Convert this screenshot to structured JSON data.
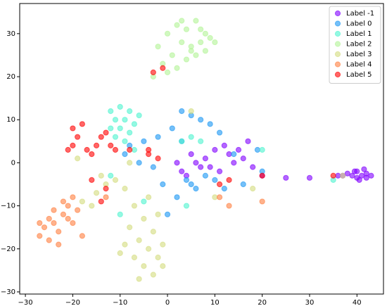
{
  "chart_data": {
    "type": "scatter",
    "xlim": [
      -31.2,
      45.6
    ],
    "ylim": [
      -30.5,
      37
    ],
    "xticks": [
      {
        "value": -30,
        "label": "−30"
      },
      {
        "value": -20,
        "label": "−20"
      },
      {
        "value": -10,
        "label": "−10"
      },
      0,
      10,
      20,
      30,
      40
    ],
    "yticks": [
      {
        "value": -30,
        "label": "−30"
      },
      {
        "value": -20,
        "label": "−20"
      },
      {
        "value": -10,
        "label": "−10"
      },
      0,
      10,
      20,
      30
    ],
    "legend": "upper right",
    "grid": false,
    "series": [
      {
        "name": "Label -1",
        "color": "#8000ff",
        "x": [
          40,
          41,
          42,
          39,
          40.5,
          41.5,
          38,
          43,
          39.5,
          40,
          42,
          37,
          36,
          2,
          5,
          8,
          10,
          12,
          14,
          16,
          18,
          11,
          7,
          4,
          13,
          15,
          9,
          6,
          17,
          3,
          20,
          25,
          30
        ],
        "y": [
          -2,
          -3,
          -2.5,
          -3,
          -4,
          -1.5,
          -2.5,
          -3,
          -2,
          -3.5,
          -3.5,
          -3,
          -3,
          0,
          2,
          1,
          3,
          4,
          0,
          1,
          -1,
          -2,
          -1,
          -3,
          2,
          3,
          -1,
          0,
          5,
          -2,
          -3,
          -3.5,
          -3.5
        ]
      },
      {
        "name": "Label 0",
        "color": "#1996f3",
        "x": [
          3,
          5,
          7,
          9,
          1,
          -2,
          -5,
          -8,
          11,
          14,
          19,
          20,
          4,
          6,
          8,
          -1,
          2,
          12,
          -3,
          -6,
          0,
          5,
          10,
          16,
          -9,
          3
        ],
        "y": [
          12,
          11,
          10,
          9,
          8,
          6,
          5,
          4,
          7,
          2,
          3,
          -2,
          -4,
          -6,
          -3,
          -5,
          -8,
          -6,
          -1,
          0,
          -12,
          -5,
          -4,
          -5,
          2,
          5
        ]
      },
      {
        "name": "Label 1",
        "color": "#4df3ce",
        "x": [
          -12,
          -10,
          -8,
          -11,
          -9,
          -7,
          -12,
          -10,
          -8,
          -6,
          -11,
          -9,
          5,
          7,
          4,
          -12,
          -5,
          20,
          35,
          -10,
          -7,
          3
        ],
        "y": [
          12,
          13,
          12,
          10,
          10,
          9,
          8,
          8,
          7,
          11,
          6,
          5,
          6,
          5,
          -10,
          -3,
          -9,
          3,
          -4,
          -12,
          3,
          5
        ]
      },
      {
        "name": "Label 2",
        "color": "#b2f396",
        "x": [
          0,
          2,
          4,
          6,
          8,
          3,
          5,
          7,
          9,
          1,
          4,
          6,
          8,
          -1,
          2,
          -3,
          0,
          5,
          10,
          3,
          7,
          -2
        ],
        "y": [
          30,
          32,
          31,
          33,
          30,
          28,
          27,
          28,
          29,
          25,
          24,
          25,
          26,
          23,
          22,
          20,
          21,
          26,
          28,
          33,
          31,
          27
        ]
      },
      {
        "name": "Label 3",
        "color": "#d4dc7f",
        "x": [
          -8,
          -6,
          -4,
          -2,
          -7,
          -5,
          -3,
          -1,
          -9,
          -5,
          -3,
          -7,
          -4,
          -2,
          -10,
          -6,
          -1,
          -9,
          -11,
          -14,
          -16,
          -18,
          -15,
          -13,
          -19,
          5,
          10,
          18,
          37,
          -8
        ],
        "y": [
          -15,
          -18,
          -20,
          -22,
          -22,
          -24,
          -26,
          -19,
          -19,
          -13,
          -16,
          -10,
          -8,
          -12,
          -21,
          -27,
          -24,
          -6,
          -4,
          -3,
          -10,
          -9,
          -7,
          -5,
          1,
          12,
          -8,
          -6,
          -3,
          0
        ]
      },
      {
        "name": "Label 4",
        "color": "#ff7f40",
        "x": [
          -27,
          -26,
          -25,
          -24,
          -23,
          -22,
          -21,
          -20,
          -19,
          -22,
          -24,
          -25,
          -27,
          -20,
          -18,
          -21,
          -13,
          11,
          13,
          20,
          -23
        ],
        "y": [
          -17,
          -15,
          -18,
          -14,
          -16,
          -12,
          -10,
          -8,
          -11,
          -9,
          -11,
          -13,
          -14,
          -14,
          -17,
          -13,
          -8,
          -8,
          -10,
          -9,
          -19
        ]
      },
      {
        "name": "Label 5",
        "color": "#ff0000",
        "x": [
          -20,
          -19,
          -20,
          -21,
          -18,
          -17,
          -16,
          -15,
          -14,
          -13,
          -12,
          -11,
          -16,
          -14,
          -13,
          -8,
          -4,
          -2,
          11,
          13,
          20,
          35,
          -3,
          -1,
          -4
        ],
        "y": [
          8,
          6,
          4,
          3,
          9,
          3,
          2,
          4,
          6,
          7,
          4,
          3,
          -4,
          -9,
          -6,
          3,
          2,
          1,
          -5,
          -4,
          -3,
          -3,
          21,
          22,
          3
        ]
      }
    ]
  }
}
